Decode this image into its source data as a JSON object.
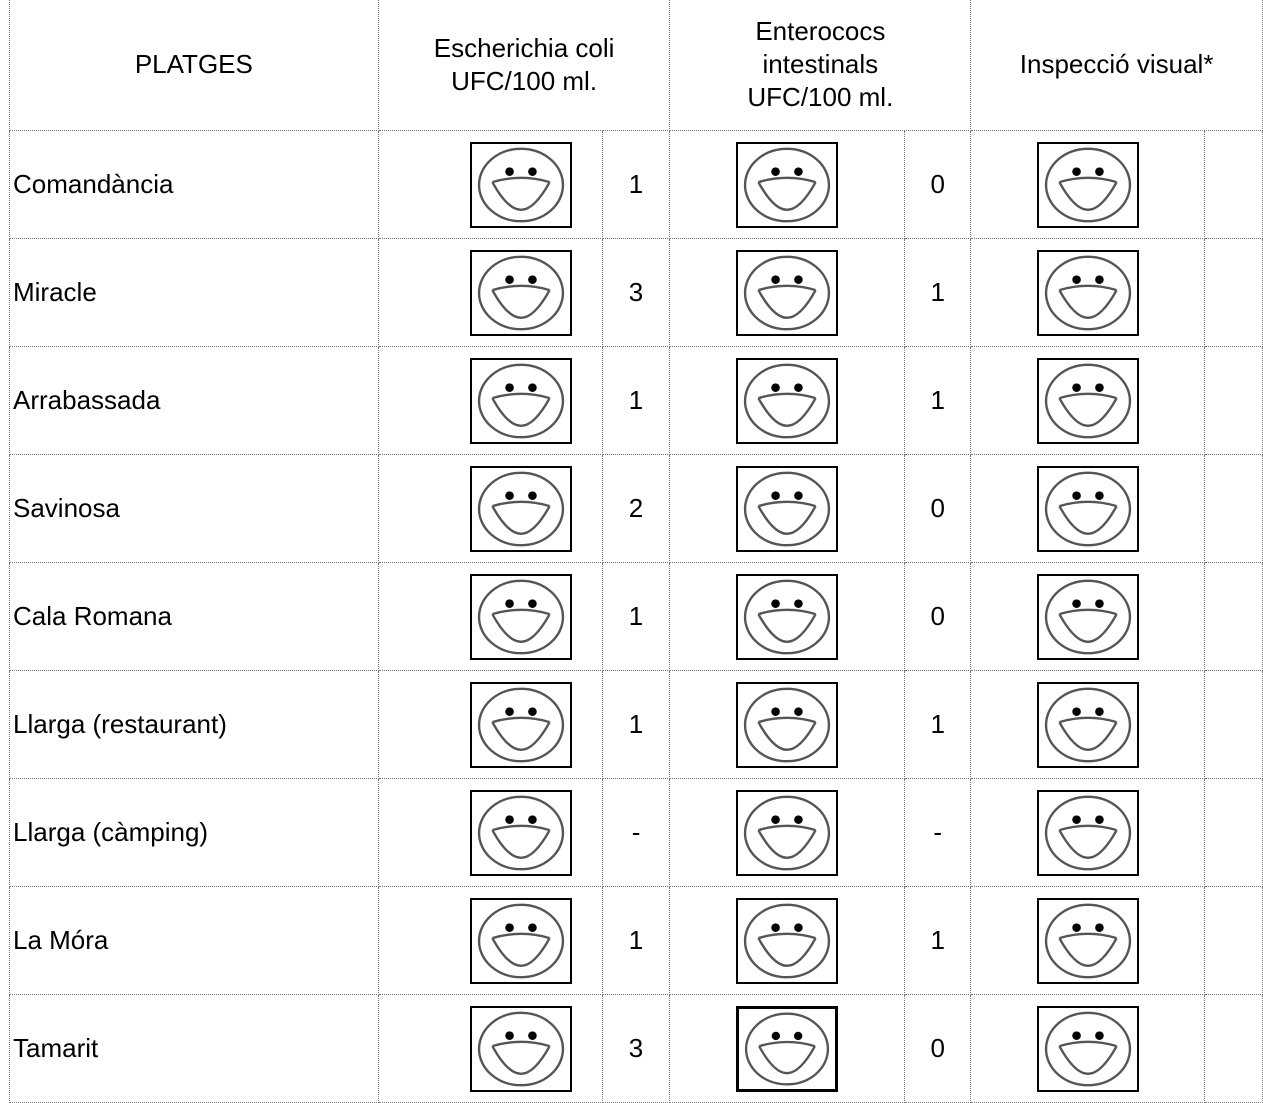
{
  "header": {
    "beaches": "PLATGES",
    "ecoli": [
      "Escherichia coli",
      "UFC/100 ml."
    ],
    "enterococcus": [
      "Enterococs",
      "intestinals",
      "UFC/100 ml."
    ],
    "visual": "Inspecció visual*"
  },
  "rows": [
    {
      "name": "Comandància",
      "ecoli": "1",
      "entero": "0",
      "icons": [
        "smiley-icon",
        "smiley-icon",
        "smiley-icon"
      ]
    },
    {
      "name": "Miracle",
      "ecoli": "3",
      "entero": "1",
      "icons": [
        "smiley-icon",
        "smiley-icon",
        "smiley-icon"
      ]
    },
    {
      "name": "Arrabassada",
      "ecoli": "1",
      "entero": "1",
      "icons": [
        "smiley-icon",
        "smiley-icon",
        "smiley-icon"
      ]
    },
    {
      "name": "Savinosa",
      "ecoli": "2",
      "entero": "0",
      "icons": [
        "smiley-icon",
        "smiley-icon",
        "smiley-icon"
      ]
    },
    {
      "name": "Cala Romana",
      "ecoli": "1",
      "entero": "0",
      "icons": [
        "smiley-icon",
        "smiley-icon",
        "smiley-icon"
      ]
    },
    {
      "name": "Llarga (restaurant)",
      "ecoli": "1",
      "entero": "1",
      "icons": [
        "smiley-icon",
        "smiley-icon",
        "smiley-icon"
      ]
    },
    {
      "name": "Llarga (càmping)",
      "ecoli": "-",
      "entero": "-",
      "icons": [
        "smiley-icon",
        "smiley-icon",
        "smiley-icon"
      ]
    },
    {
      "name": "La Móra",
      "ecoli": "1",
      "entero": "1",
      "icons": [
        "smiley-icon",
        "smiley-icon",
        "smiley-icon"
      ]
    },
    {
      "name": "Tamarit",
      "ecoli": "3",
      "entero": "0",
      "icons": [
        "smiley-icon",
        "smiley-icon",
        "smiley-icon"
      ]
    }
  ],
  "colors": {
    "grid": "#7a7a7a",
    "face_stroke": "#555555",
    "box_border": "#000000"
  }
}
